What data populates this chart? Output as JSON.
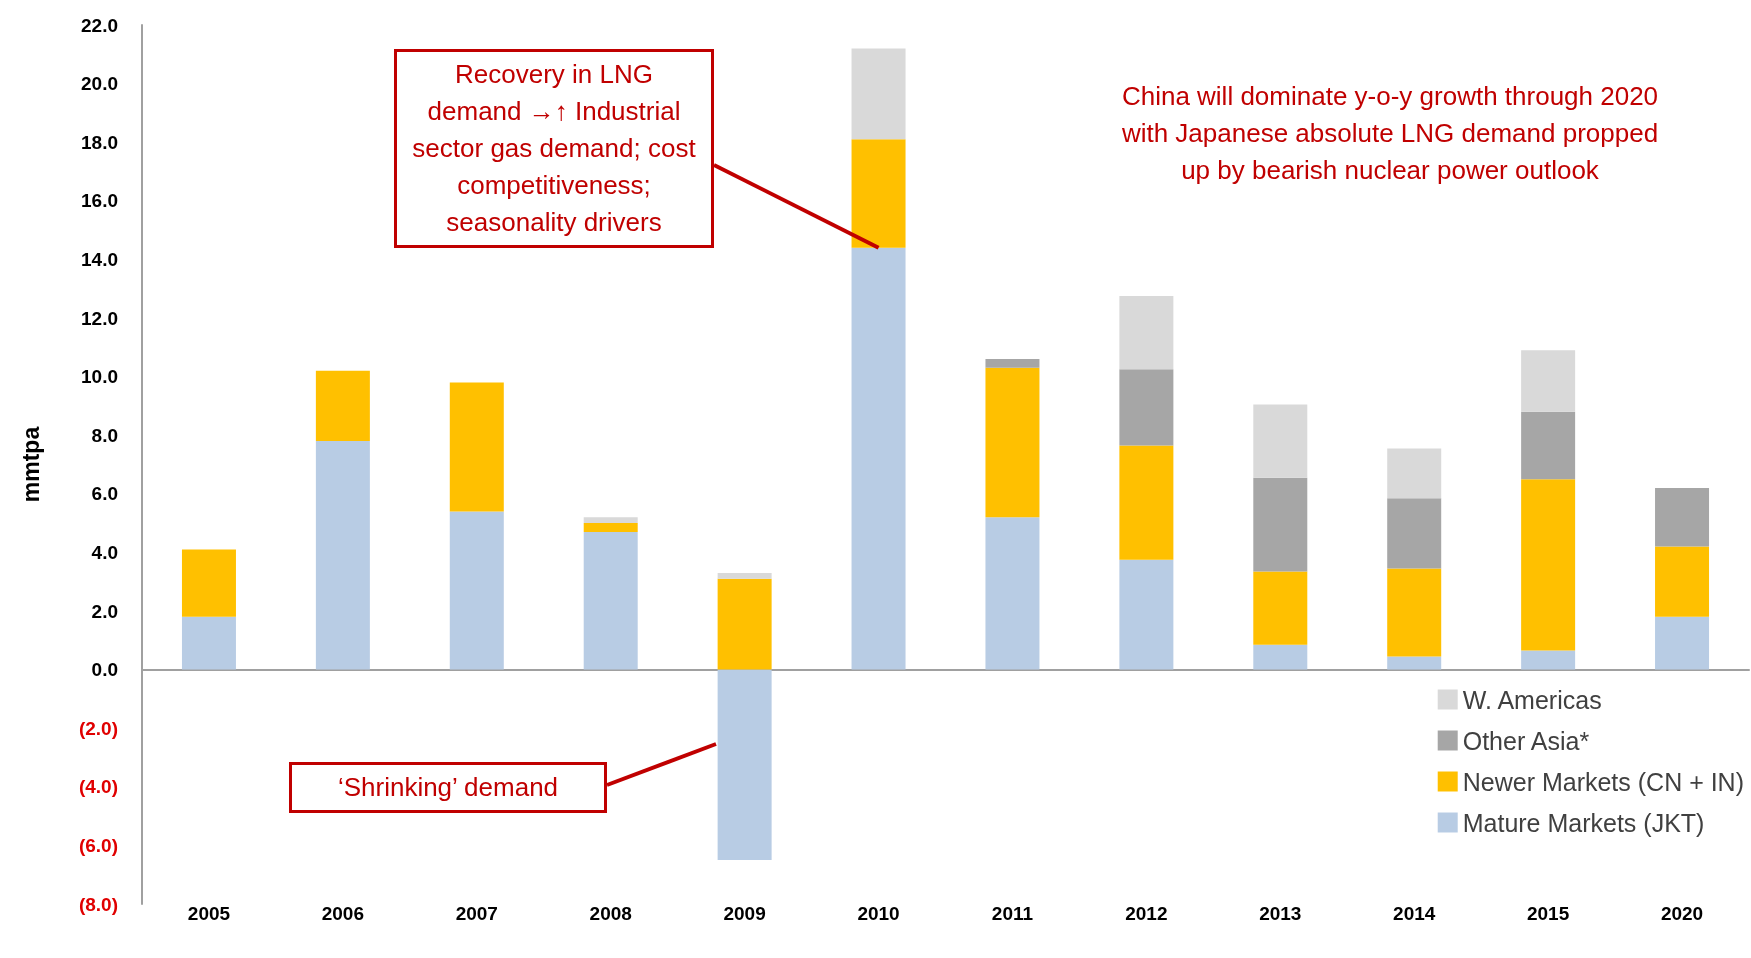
{
  "chart_data": {
    "type": "bar",
    "stacked": true,
    "ylabel": "mmtpa",
    "categories": [
      "2005",
      "2006",
      "2007",
      "2008",
      "2009",
      "2010",
      "2011",
      "2012",
      "2013",
      "2014",
      "2015",
      "2020"
    ],
    "series": [
      {
        "name": "Mature Markets (JKT)",
        "color": "#b8cce4",
        "values": [
          1.8,
          7.8,
          5.4,
          4.7,
          -6.5,
          14.4,
          5.2,
          3.75,
          0.85,
          0.45,
          0.65,
          1.8
        ]
      },
      {
        "name": "Newer Markets (CN + IN)",
        "color": "#ffc000",
        "values": [
          2.3,
          2.4,
          4.4,
          0.3,
          3.1,
          3.7,
          5.1,
          3.9,
          2.5,
          3.0,
          5.85,
          2.4
        ]
      },
      {
        "name": "Other Asia*",
        "color": "#a6a6a6",
        "values": [
          null,
          null,
          null,
          null,
          null,
          null,
          0.3,
          2.6,
          3.2,
          2.4,
          2.3,
          2.0
        ]
      },
      {
        "name": "W. Americas",
        "color": "#d9d9d9",
        "values": [
          null,
          null,
          null,
          0.2,
          0.2,
          3.1,
          null,
          2.5,
          2.5,
          1.7,
          2.1,
          null
        ]
      }
    ],
    "ylim": [
      -8,
      22
    ],
    "yticks": [
      {
        "value": -8,
        "label": "(8.0)"
      },
      {
        "value": -6,
        "label": "(6.0)"
      },
      {
        "value": -4,
        "label": "(4.0)"
      },
      {
        "value": -2,
        "label": "(2.0)"
      },
      {
        "value": 0,
        "label": "0.0"
      },
      {
        "value": 2,
        "label": "2.0"
      },
      {
        "value": 4,
        "label": "4.0"
      },
      {
        "value": 6,
        "label": "6.0"
      },
      {
        "value": 8,
        "label": "8.0"
      },
      {
        "value": 10,
        "label": "10.0"
      },
      {
        "value": 12,
        "label": "12.0"
      },
      {
        "value": 14,
        "label": "14.0"
      },
      {
        "value": 16,
        "label": "16.0"
      },
      {
        "value": 18,
        "label": "18.0"
      },
      {
        "value": 20,
        "label": "20.0"
      },
      {
        "value": 22,
        "label": "22.0"
      }
    ],
    "legend": "bottom right",
    "annotations": [
      "China will dominate y-o-y growth through 2020 with Japanese absolute LNG demand propped up by bearish nuclear power outlook",
      {
        "text": "Recovery in LNG demand →↑ Industrial sector gas demand; cost competitiveness; seasonality drivers",
        "x": "2010",
        "y": 14.4
      },
      "‘Shrinking’ demand"
    ]
  }
}
